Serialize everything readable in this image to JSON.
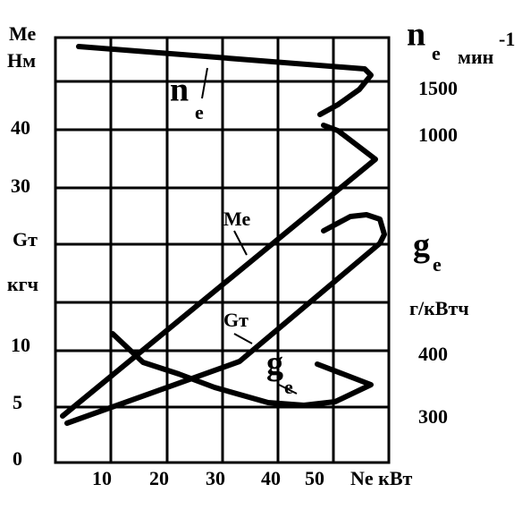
{
  "left_axis": {
    "title": "Ме",
    "unit": "Нм",
    "labels": [
      "40",
      "30",
      "10",
      "5",
      "0"
    ],
    "second_title": "Gт",
    "second_unit": "кгч"
  },
  "right_axis": {
    "ne": {
      "symbol": "n",
      "subscript": "е",
      "unit": "мин",
      "exponent": "-1"
    },
    "ne_labels": [
      "1500",
      "1000"
    ],
    "ge": {
      "symbol": "g",
      "subscript": "е",
      "unit": "г/кВтч"
    },
    "ge_labels": [
      "400",
      "300"
    ]
  },
  "bottom_axis": {
    "labels": [
      "10",
      "20",
      "30",
      "40",
      "50"
    ],
    "title": "Ne кВт"
  },
  "curves": {
    "ne": {
      "symbol": "n",
      "subscript": "е"
    },
    "me": "Ме",
    "gt": "Gт",
    "ge": {
      "symbol": "g",
      "subscript": "е"
    }
  }
}
